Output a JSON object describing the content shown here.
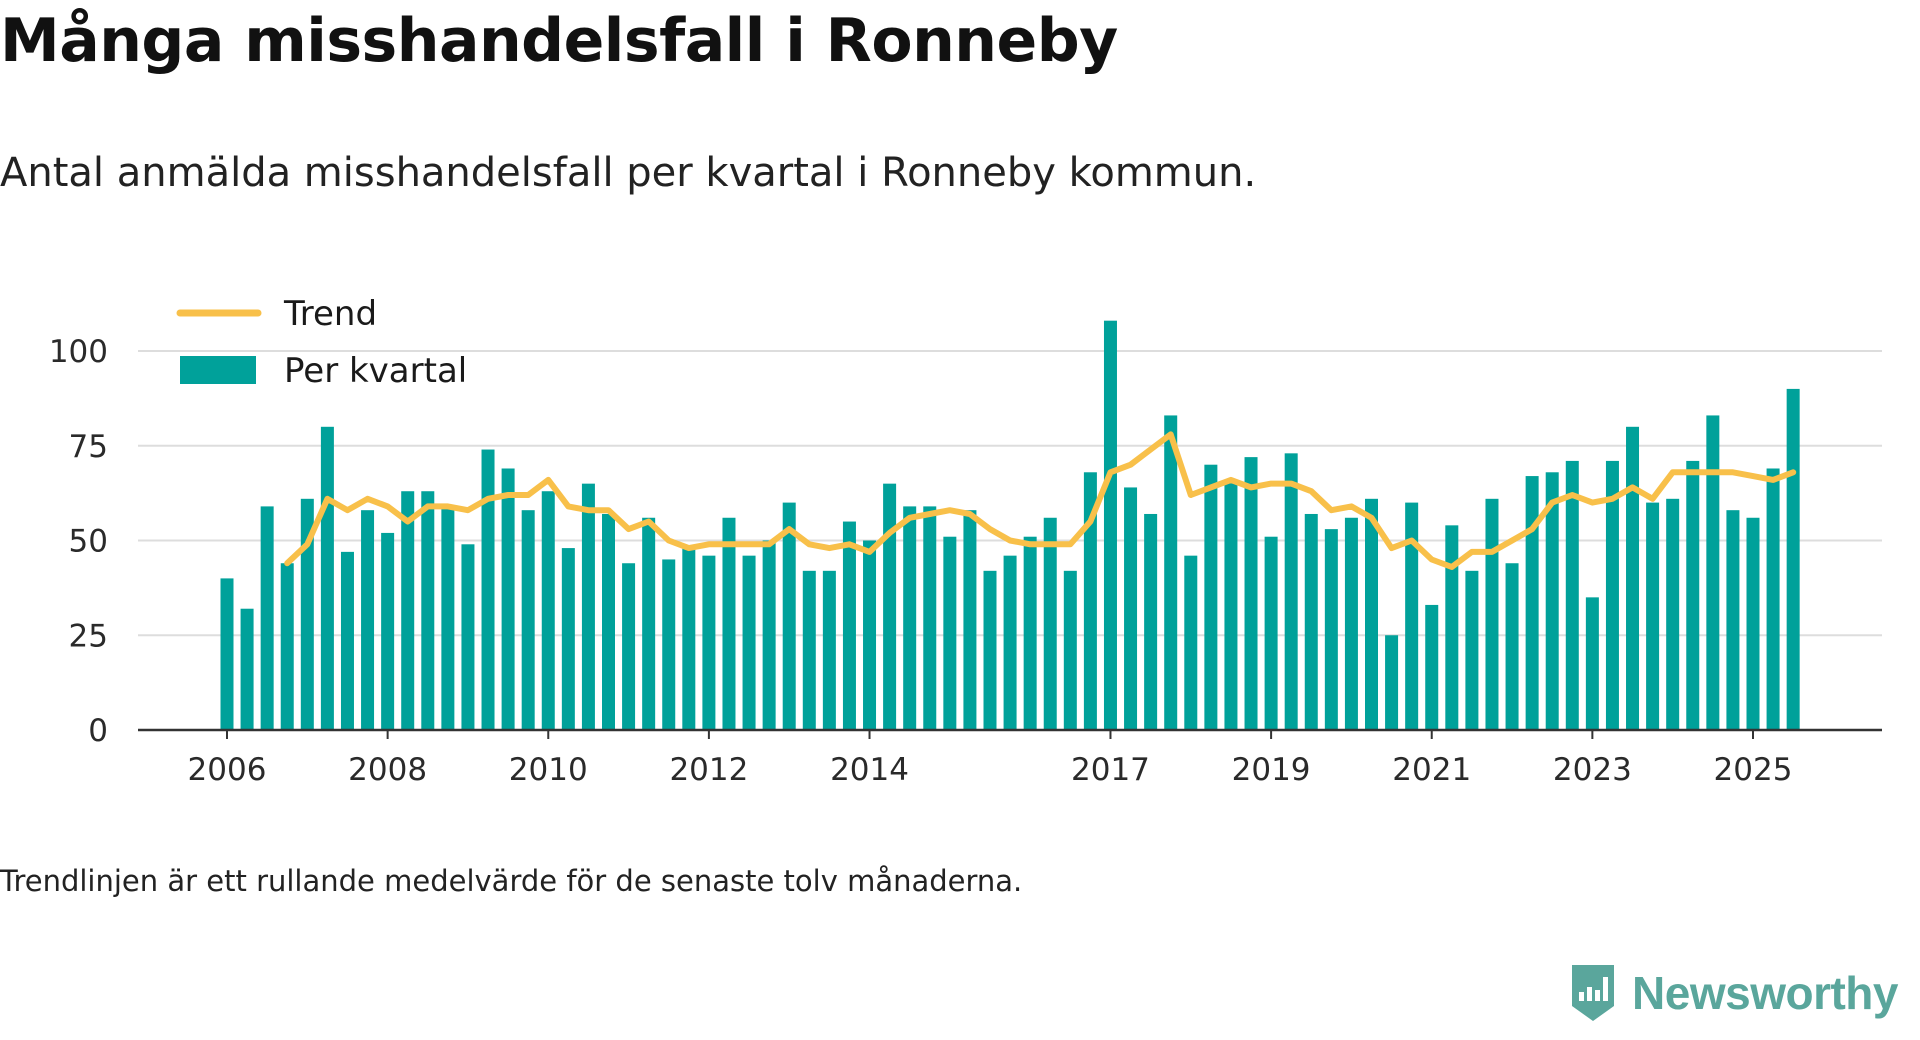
{
  "title": "Många misshandelsfall i Ronneby",
  "subtitle": "Antal anmälda misshandelsfall per kvartal i Ronneby kommun.",
  "note": "Trendlinjen är ett rullande medelvärde för de senaste tolv månaderna.",
  "brand": "Newsworthy",
  "colors": {
    "bar": "#00a19a",
    "trend": "#f8c04a",
    "grid": "#dddddd",
    "axis": "#333333",
    "brand": "#5aa69c"
  },
  "chart_data": {
    "type": "bar",
    "title": "Många misshandelsfall i Ronneby",
    "xlabel": "",
    "ylabel": "",
    "ylim": [
      0,
      112
    ],
    "xlim": [
      2005.75,
      2026.5
    ],
    "yticks": [
      0,
      25,
      50,
      75,
      100
    ],
    "xticks": [
      2006,
      2008,
      2010,
      2012,
      2014,
      2017,
      2019,
      2021,
      2023,
      2025
    ],
    "grid": true,
    "legend_position": "top-left",
    "series": [
      {
        "name": "Per kvartal",
        "type": "bar",
        "start": 2006,
        "step": 0.25,
        "values": [
          40,
          32,
          59,
          44,
          61,
          80,
          47,
          58,
          52,
          63,
          63,
          59,
          49,
          74,
          69,
          58,
          63,
          48,
          65,
          57,
          44,
          56,
          45,
          48,
          46,
          56,
          46,
          50,
          60,
          42,
          42,
          55,
          50,
          65,
          59,
          59,
          51,
          58,
          42,
          46,
          51,
          56,
          42,
          68,
          108,
          64,
          57,
          83,
          46,
          70,
          66,
          72,
          51,
          73,
          57,
          53,
          56,
          61,
          25,
          60,
          33,
          54,
          42,
          61,
          44,
          67,
          68,
          71,
          35,
          71,
          80,
          60,
          61,
          71,
          83,
          58,
          56,
          69,
          90
        ]
      },
      {
        "name": "Trend",
        "type": "line",
        "start": 2006.75,
        "step": 0.25,
        "values": [
          44,
          49,
          61,
          58,
          61,
          59,
          55,
          59,
          59,
          58,
          61,
          62,
          62,
          66,
          59,
          58,
          58,
          53,
          55,
          50,
          48,
          49,
          49,
          49,
          49,
          53,
          49,
          48,
          49,
          47,
          52,
          56,
          57,
          58,
          57,
          53,
          50,
          49,
          49,
          49,
          55,
          68,
          70,
          74,
          78,
          62,
          64,
          66,
          64,
          65,
          65,
          63,
          58,
          59,
          56,
          48,
          50,
          45,
          43,
          47,
          47,
          50,
          53,
          60,
          62,
          60,
          61,
          64,
          61,
          68,
          68,
          68,
          68,
          67,
          66,
          68
        ]
      }
    ]
  }
}
